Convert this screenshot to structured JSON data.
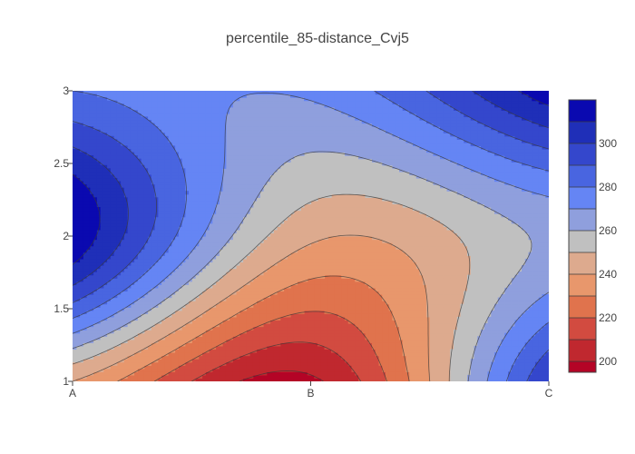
{
  "chart_data": {
    "type": "contour",
    "title": "percentile_85-distance_Cvj5",
    "x": [
      "A",
      "B",
      "C"
    ],
    "y_range": [
      1,
      3
    ],
    "y_ticks": [
      1,
      1.5,
      2,
      2.5,
      3
    ],
    "y_tick_labels": [
      "1",
      "1.5",
      "2",
      "2.5",
      "3"
    ],
    "z_grid": {
      "x_index": [
        0,
        1,
        2
      ],
      "y": [
        1,
        2,
        3
      ],
      "z": [
        [
          240,
          198,
          300
        ],
        [
          318,
          242,
          262
        ],
        [
          280,
          272,
          316
        ]
      ]
    },
    "colorscale": "coolwarm",
    "colorbar": {
      "range": [
        195,
        320
      ],
      "ticks": [
        200,
        220,
        240,
        260,
        280,
        300
      ],
      "tick_labels": [
        "200",
        "220",
        "240",
        "260",
        "280",
        "300"
      ]
    },
    "contour_levels": [
      200,
      210,
      220,
      230,
      240,
      250,
      260,
      270,
      280,
      290,
      300,
      310
    ],
    "band_colors": [
      "#b40426",
      "#c0282f",
      "#d24b40",
      "#e0734d",
      "#e8976c",
      "#ddaa8e",
      "#c0c0c0",
      "#8f9fdd",
      "#6585f4",
      "#4965e0",
      "#3447cc",
      "#1f2fb8",
      "#0a09b0"
    ]
  }
}
